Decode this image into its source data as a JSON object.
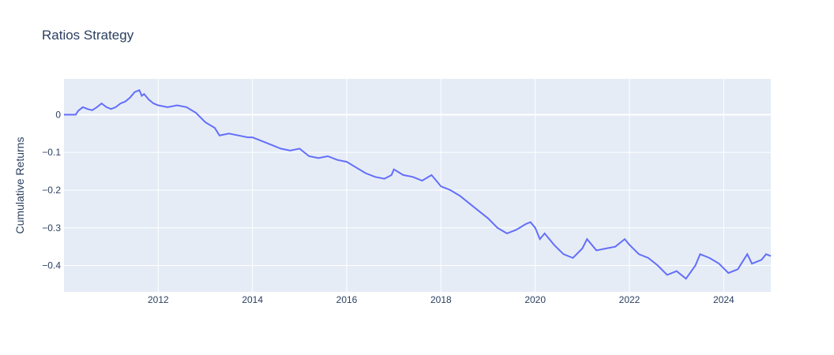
{
  "chart_data": {
    "type": "line",
    "title": "Ratios Strategy",
    "xlabel": "",
    "ylabel": "Cumulative Returns",
    "xlim": [
      2010.0,
      2025.0
    ],
    "ylim": [
      -0.47,
      0.095
    ],
    "x_ticks": [
      {
        "value": 2012,
        "label": "2012"
      },
      {
        "value": 2014,
        "label": "2014"
      },
      {
        "value": 2016,
        "label": "2016"
      },
      {
        "value": 2018,
        "label": "2018"
      },
      {
        "value": 2020,
        "label": "2020"
      },
      {
        "value": 2022,
        "label": "2022"
      },
      {
        "value": 2024,
        "label": "2024"
      }
    ],
    "y_ticks": [
      {
        "value": 0,
        "label": "0"
      },
      {
        "value": -0.1,
        "label": "−0.1"
      },
      {
        "value": -0.2,
        "label": "−0.2"
      },
      {
        "value": -0.3,
        "label": "−0.3"
      },
      {
        "value": -0.4,
        "label": "−0.4"
      }
    ],
    "grid": true,
    "colors": {
      "line": "#636efa",
      "plot_bg": "#e5ecf6",
      "grid": "#ffffff",
      "text": "#2a3f5f"
    },
    "series": [
      {
        "x": [
          2010.0,
          2010.25,
          2010.3,
          2010.4,
          2010.5,
          2010.6,
          2010.7,
          2010.8,
          2010.9,
          2011.0,
          2011.1,
          2011.2,
          2011.3,
          2011.4,
          2011.5,
          2011.6,
          2011.65,
          2011.7,
          2011.8,
          2011.9,
          2012.0,
          2012.2,
          2012.4,
          2012.6,
          2012.8,
          2013.0,
          2013.2,
          2013.3,
          2013.5,
          2013.7,
          2013.9,
          2014.0,
          2014.2,
          2014.4,
          2014.6,
          2014.8,
          2015.0,
          2015.2,
          2015.4,
          2015.6,
          2015.8,
          2016.0,
          2016.2,
          2016.4,
          2016.6,
          2016.8,
          2016.95,
          2017.0,
          2017.2,
          2017.4,
          2017.6,
          2017.8,
          2017.9,
          2018.0,
          2018.2,
          2018.4,
          2018.6,
          2018.8,
          2019.0,
          2019.2,
          2019.4,
          2019.6,
          2019.8,
          2019.9,
          2020.0,
          2020.1,
          2020.2,
          2020.4,
          2020.6,
          2020.8,
          2021.0,
          2021.1,
          2021.3,
          2021.5,
          2021.7,
          2021.9,
          2022.0,
          2022.2,
          2022.4,
          2022.6,
          2022.8,
          2023.0,
          2023.2,
          2023.4,
          2023.5,
          2023.7,
          2023.9,
          2024.1,
          2024.3,
          2024.5,
          2024.6,
          2024.8,
          2024.9,
          2025.0
        ],
        "y": [
          0.0,
          0.0,
          0.01,
          0.02,
          0.015,
          0.012,
          0.02,
          0.03,
          0.02,
          0.015,
          0.02,
          0.03,
          0.035,
          0.045,
          0.06,
          0.065,
          0.05,
          0.055,
          0.04,
          0.03,
          0.025,
          0.02,
          0.025,
          0.02,
          0.005,
          -0.02,
          -0.035,
          -0.055,
          -0.05,
          -0.055,
          -0.06,
          -0.06,
          -0.07,
          -0.08,
          -0.09,
          -0.095,
          -0.09,
          -0.11,
          -0.115,
          -0.11,
          -0.12,
          -0.125,
          -0.14,
          -0.155,
          -0.165,
          -0.17,
          -0.16,
          -0.145,
          -0.16,
          -0.165,
          -0.175,
          -0.16,
          -0.175,
          -0.19,
          -0.2,
          -0.215,
          -0.235,
          -0.255,
          -0.275,
          -0.3,
          -0.315,
          -0.305,
          -0.29,
          -0.285,
          -0.3,
          -0.33,
          -0.315,
          -0.345,
          -0.37,
          -0.38,
          -0.355,
          -0.33,
          -0.36,
          -0.355,
          -0.35,
          -0.33,
          -0.345,
          -0.37,
          -0.38,
          -0.4,
          -0.425,
          -0.415,
          -0.435,
          -0.4,
          -0.37,
          -0.38,
          -0.395,
          -0.42,
          -0.41,
          -0.37,
          -0.395,
          -0.385,
          -0.37,
          -0.375
        ]
      }
    ]
  }
}
